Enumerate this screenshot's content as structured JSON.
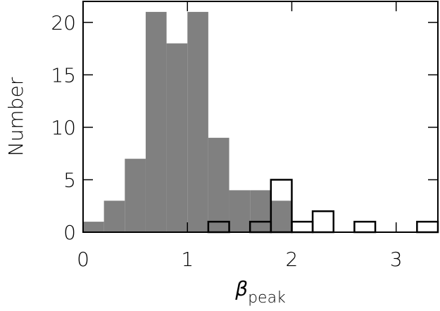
{
  "chart_data": {
    "type": "histogram",
    "xlabel": "β",
    "xlabel_subscript": "peak",
    "ylabel": "Number",
    "xlim": [
      0,
      3.4
    ],
    "ylim": [
      0,
      22
    ],
    "xticks": [
      0,
      1,
      2,
      3
    ],
    "yticks": [
      0,
      5,
      10,
      15,
      20
    ],
    "series": [
      {
        "color": "#808080",
        "fill": true,
        "bins": [
          0,
          0.2,
          0.4,
          0.6,
          0.8,
          1.0,
          1.2,
          1.4,
          1.6,
          1.8,
          2.0
        ],
        "values": [
          1,
          3,
          7,
          21,
          18,
          21,
          9,
          4,
          4,
          3
        ]
      },
      {
        "color": "#000000",
        "fill": false,
        "bins": [
          1.2,
          1.4,
          1.6,
          1.8,
          2.0,
          2.2,
          2.4,
          2.6,
          2.8,
          3.0,
          3.2,
          3.4
        ],
        "values": [
          1,
          0,
          1,
          5,
          1,
          2,
          0,
          1,
          0,
          0,
          1
        ]
      }
    ]
  }
}
